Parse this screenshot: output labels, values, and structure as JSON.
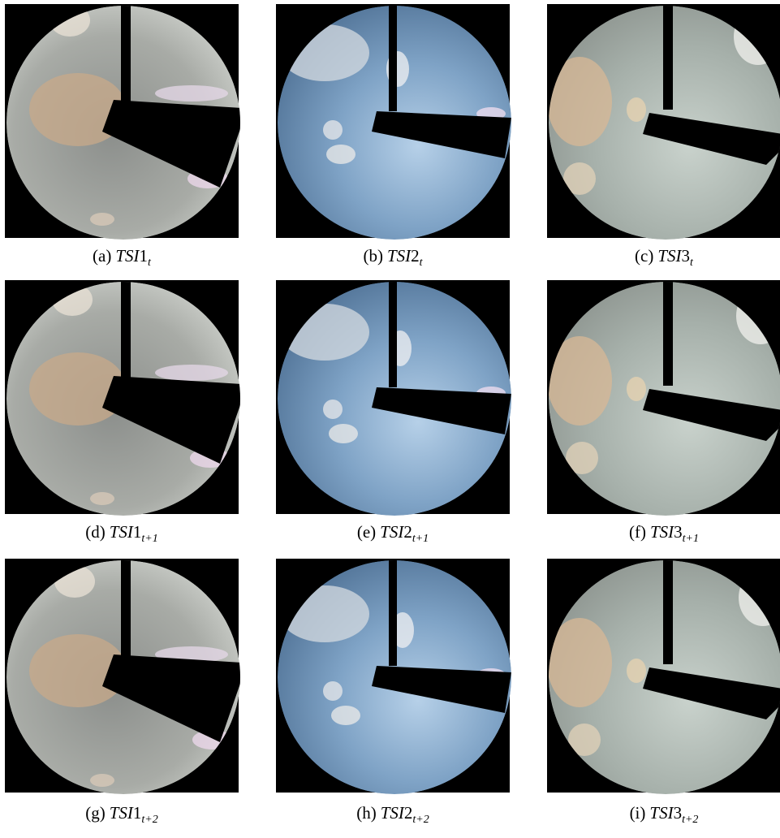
{
  "figure": {
    "panels": [
      {
        "label": "(a)",
        "base": "TSI",
        "index": "1",
        "sub": "t"
      },
      {
        "label": "(b)",
        "base": "TSI",
        "index": "2",
        "sub": "t"
      },
      {
        "label": "(c)",
        "base": "TSI",
        "index": "3",
        "sub": "t"
      },
      {
        "label": "(d)",
        "base": "TSI",
        "index": "1",
        "sub": "t+1"
      },
      {
        "label": "(e)",
        "base": "TSI",
        "index": "2",
        "sub": "t+1"
      },
      {
        "label": "(f)",
        "base": "TSI",
        "index": "3",
        "sub": "t+1"
      },
      {
        "label": "(g)",
        "base": "TSI",
        "index": "1",
        "sub": "t+2"
      },
      {
        "label": "(h)",
        "base": "TSI",
        "index": "2",
        "sub": "t+2"
      },
      {
        "label": "(i)",
        "base": "TSI",
        "index": "3",
        "sub": "t+2"
      }
    ]
  }
}
